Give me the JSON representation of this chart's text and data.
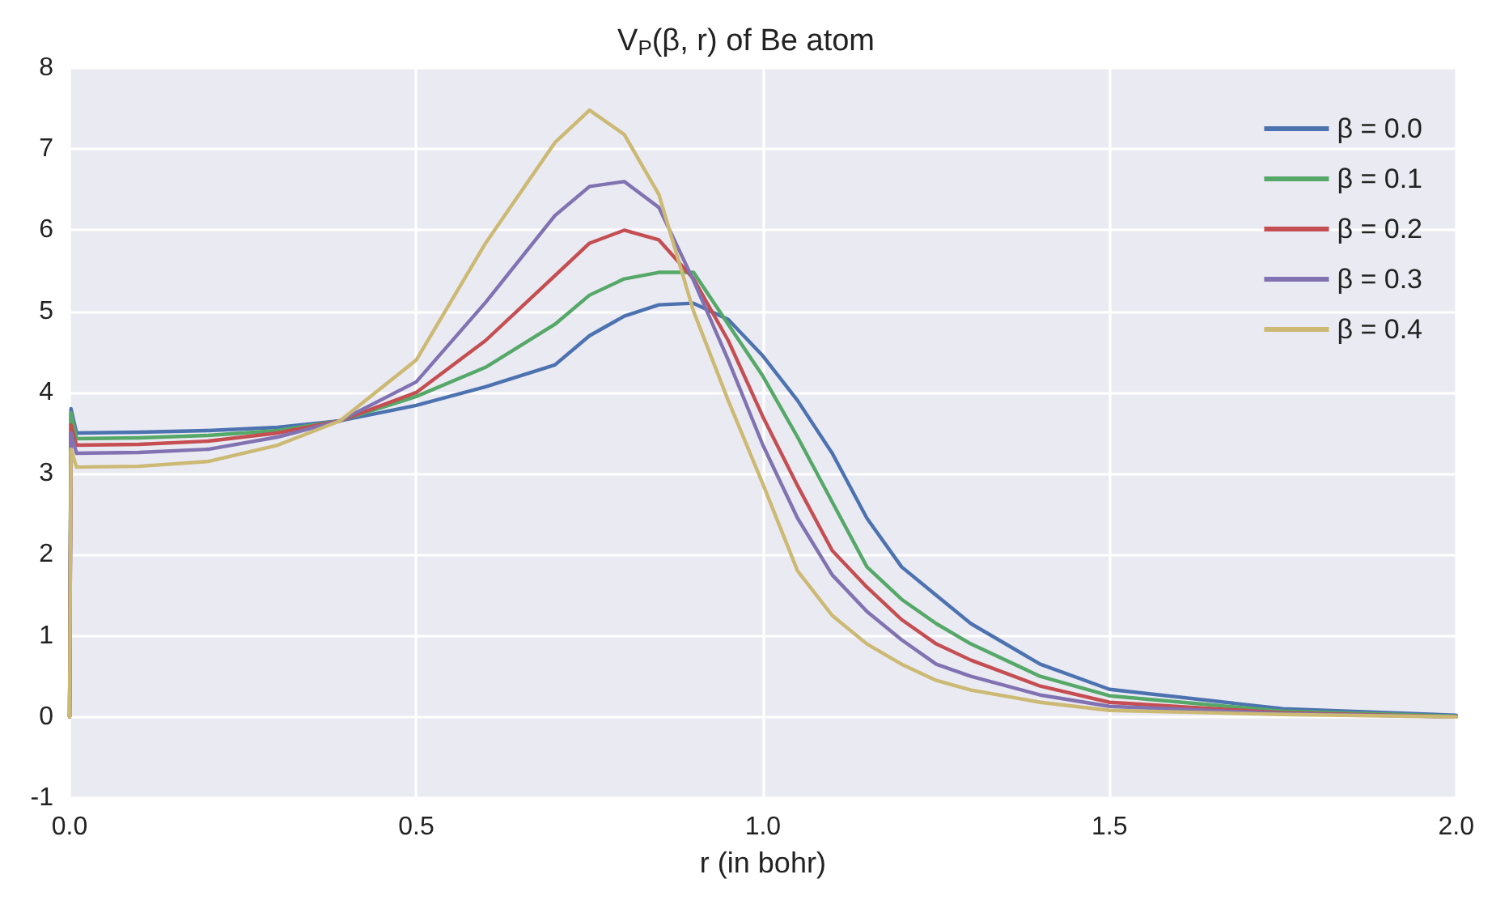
{
  "chart_data": {
    "type": "line",
    "title": "V$_{P}$(β, r) of Be atom",
    "xlabel": "r (in bohr)",
    "x": [
      0,
      0.002,
      0.01,
      0.1,
      0.2,
      0.3,
      0.39,
      0.5,
      0.6,
      0.7,
      0.75,
      0.8,
      0.85,
      0.9,
      0.95,
      1.0,
      1.05,
      1.1,
      1.15,
      1.2,
      1.25,
      1.3,
      1.4,
      1.5,
      1.75,
      2.0
    ],
    "series": [
      {
        "name": "β = 0.0",
        "color": "#4c72b0",
        "values": [
          0,
          3.8,
          3.5,
          3.51,
          3.53,
          3.57,
          3.65,
          3.84,
          4.07,
          4.34,
          4.7,
          4.94,
          5.08,
          5.1,
          4.9,
          4.45,
          3.9,
          3.25,
          2.45,
          1.85,
          1.5,
          1.15,
          0.65,
          0.34,
          0.1,
          0.02
        ]
      },
      {
        "name": "β = 0.1",
        "color": "#55a868",
        "values": [
          0,
          3.75,
          3.43,
          3.44,
          3.47,
          3.53,
          3.65,
          3.95,
          4.31,
          4.84,
          5.2,
          5.4,
          5.48,
          5.48,
          4.84,
          4.2,
          3.45,
          2.65,
          1.85,
          1.45,
          1.15,
          0.9,
          0.5,
          0.26,
          0.07,
          0.01
        ]
      },
      {
        "name": "β = 0.2",
        "color": "#c44e52",
        "values": [
          0,
          3.6,
          3.35,
          3.36,
          3.4,
          3.5,
          3.65,
          4.0,
          4.64,
          5.44,
          5.84,
          6.0,
          5.88,
          5.4,
          4.64,
          3.7,
          2.85,
          2.05,
          1.6,
          1.2,
          0.9,
          0.7,
          0.38,
          0.18,
          0.05,
          0.0
        ]
      },
      {
        "name": "β = 0.3",
        "color": "#8172b2",
        "values": [
          0,
          3.5,
          3.25,
          3.26,
          3.3,
          3.45,
          3.65,
          4.13,
          5.11,
          6.18,
          6.54,
          6.6,
          6.28,
          5.38,
          4.4,
          3.35,
          2.45,
          1.75,
          1.3,
          0.95,
          0.65,
          0.5,
          0.27,
          0.13,
          0.04,
          0.0
        ]
      },
      {
        "name": "β = 0.4",
        "color": "#ccb974",
        "values": [
          0,
          3.3,
          3.08,
          3.09,
          3.15,
          3.35,
          3.65,
          4.4,
          5.84,
          7.08,
          7.48,
          7.18,
          6.44,
          5.0,
          3.9,
          2.87,
          1.8,
          1.25,
          0.9,
          0.65,
          0.45,
          0.33,
          0.18,
          0.08,
          0.03,
          0.0
        ]
      }
    ],
    "xlim": [
      0,
      2
    ],
    "xticks": [
      {
        "value": 0,
        "label": "0.0"
      },
      {
        "value": 0.5,
        "label": "0.5"
      },
      {
        "value": 1,
        "label": "1.0"
      },
      {
        "value": 1.5,
        "label": "1.5"
      },
      {
        "value": 2,
        "label": "2.0"
      }
    ],
    "ylim": [
      -1,
      8
    ],
    "yticks": [
      -1,
      0,
      1,
      2,
      3,
      4,
      5,
      6,
      7,
      8
    ],
    "grid": true,
    "legend": "top right",
    "marker": "none",
    "line_style": "solid"
  }
}
